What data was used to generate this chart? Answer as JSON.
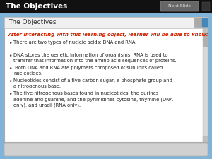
{
  "title_bar_text": "The Objectives",
  "title_bar_bg": "#111111",
  "title_bar_text_color": "#ffffff",
  "next_slide_text": "Next Slide",
  "outer_bg": "#7fb4d8",
  "inner_bg": "#ffffff",
  "inner_header": "The Objectives",
  "inner_header_bg": "#f0f0f0",
  "inner_header_color": "#333333",
  "intro_text": "After interacting with this learning object, learner will be able to know:",
  "intro_color": "#cc2200",
  "bullet_points": [
    "There are two types of nucleic acids: DNA and RNA.",
    "DNA stores the genetic information of organisms; RNA is used to\ntransfer that information into the amino acid sequences of proteins.",
    " Both DNA and RNA are polymers composed of subunits called\nnucleotides.",
    "Nucleotides consist of a five-carbon sugar, a phosphate group and\na nitrogenous base.",
    "The five nitrogenous bases found in nucleotides, the purines\nadenine and guanine, and the pyrimidines cytosine, thymine (DNA\nonly), and uracil (RNA only)."
  ],
  "bullet_color": "#222222",
  "figsize": [
    3.0,
    2.25
  ],
  "dpi": 100
}
